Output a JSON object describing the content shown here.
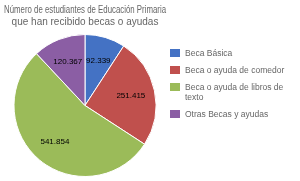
{
  "chart_data": {
    "type": "pie",
    "title": "Número de estudiantes de Educación Primaria\nque han recibido becas o ayudas",
    "categories": [
      "Beca Básica",
      "Beca o ayuda de comedor",
      "Beca o ayuda de libros de\ntexto",
      "Otras Becas y ayudas"
    ],
    "values": [
      92339,
      251415,
      541854,
      120367
    ],
    "value_labels": [
      "92.339",
      "251.415",
      "541.854",
      "120.367"
    ],
    "colors": [
      "#4472C4",
      "#C0504D",
      "#9BBB59",
      "#8B5EA4"
    ],
    "data_labels": true,
    "legend": "right"
  }
}
